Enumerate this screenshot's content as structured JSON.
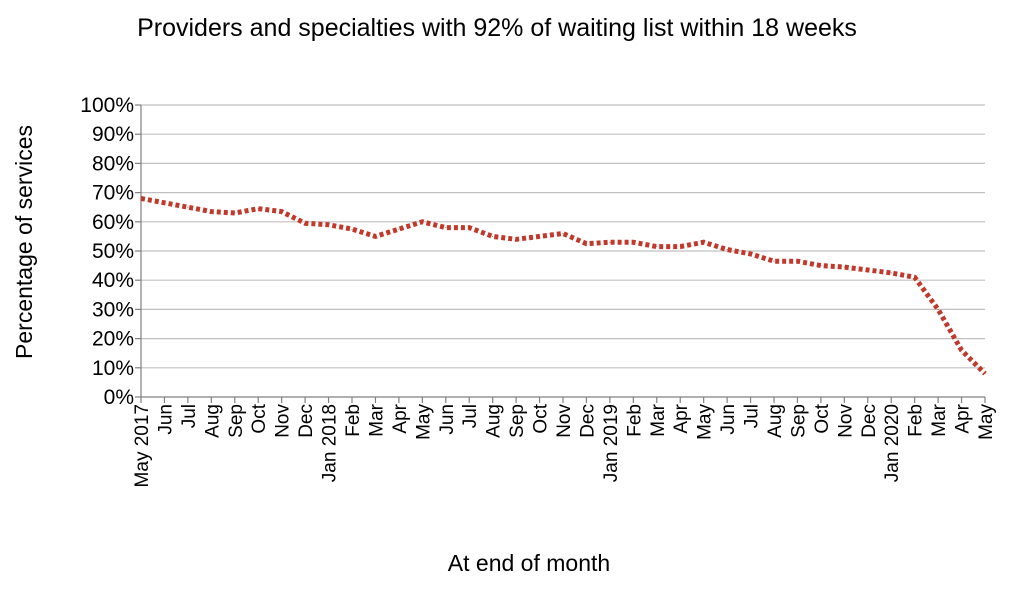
{
  "colors": {
    "series": "#c0392b",
    "grid": "#c0c0c0",
    "axis": "#808080"
  },
  "chart_data": {
    "type": "line",
    "title": "Providers and specialties with 92% of waiting list within 18 weeks",
    "xlabel": "At end of month",
    "ylabel": "Percentage of  services",
    "ylim": [
      0,
      100
    ],
    "yticks": [
      "0%",
      "10%",
      "20%",
      "30%",
      "40%",
      "50%",
      "60%",
      "70%",
      "80%",
      "90%",
      "100%"
    ],
    "grid": true,
    "legend": "none",
    "line_style": "dotted",
    "categories": [
      "May 2017",
      "Jun",
      "Jul",
      "Aug",
      "Sep",
      "Oct",
      "Nov",
      "Dec",
      "Jan 2018",
      "Feb",
      "Mar",
      "Apr",
      "May",
      "Jun",
      "Jul",
      "Aug",
      "Sep",
      "Oct",
      "Nov",
      "Dec",
      "Jan 2019",
      "Feb",
      "Mar",
      "Apr",
      "May",
      "Jun",
      "Jul",
      "Aug",
      "Sep",
      "Oct",
      "Nov",
      "Dec",
      "Jan 2020",
      "Feb",
      "Mar",
      "Apr",
      "May"
    ],
    "series": [
      {
        "values": [
          68,
          66.5,
          65,
          63.5,
          63,
          64.5,
          63.5,
          59.5,
          59,
          57.5,
          55,
          57.5,
          60,
          58,
          58,
          55,
          54,
          55,
          56,
          52.5,
          53,
          53,
          51.5,
          51.5,
          53,
          50.5,
          49,
          46.5,
          46.5,
          45,
          44.5,
          43.5,
          42.5,
          41,
          30,
          16,
          8
        ]
      }
    ]
  }
}
